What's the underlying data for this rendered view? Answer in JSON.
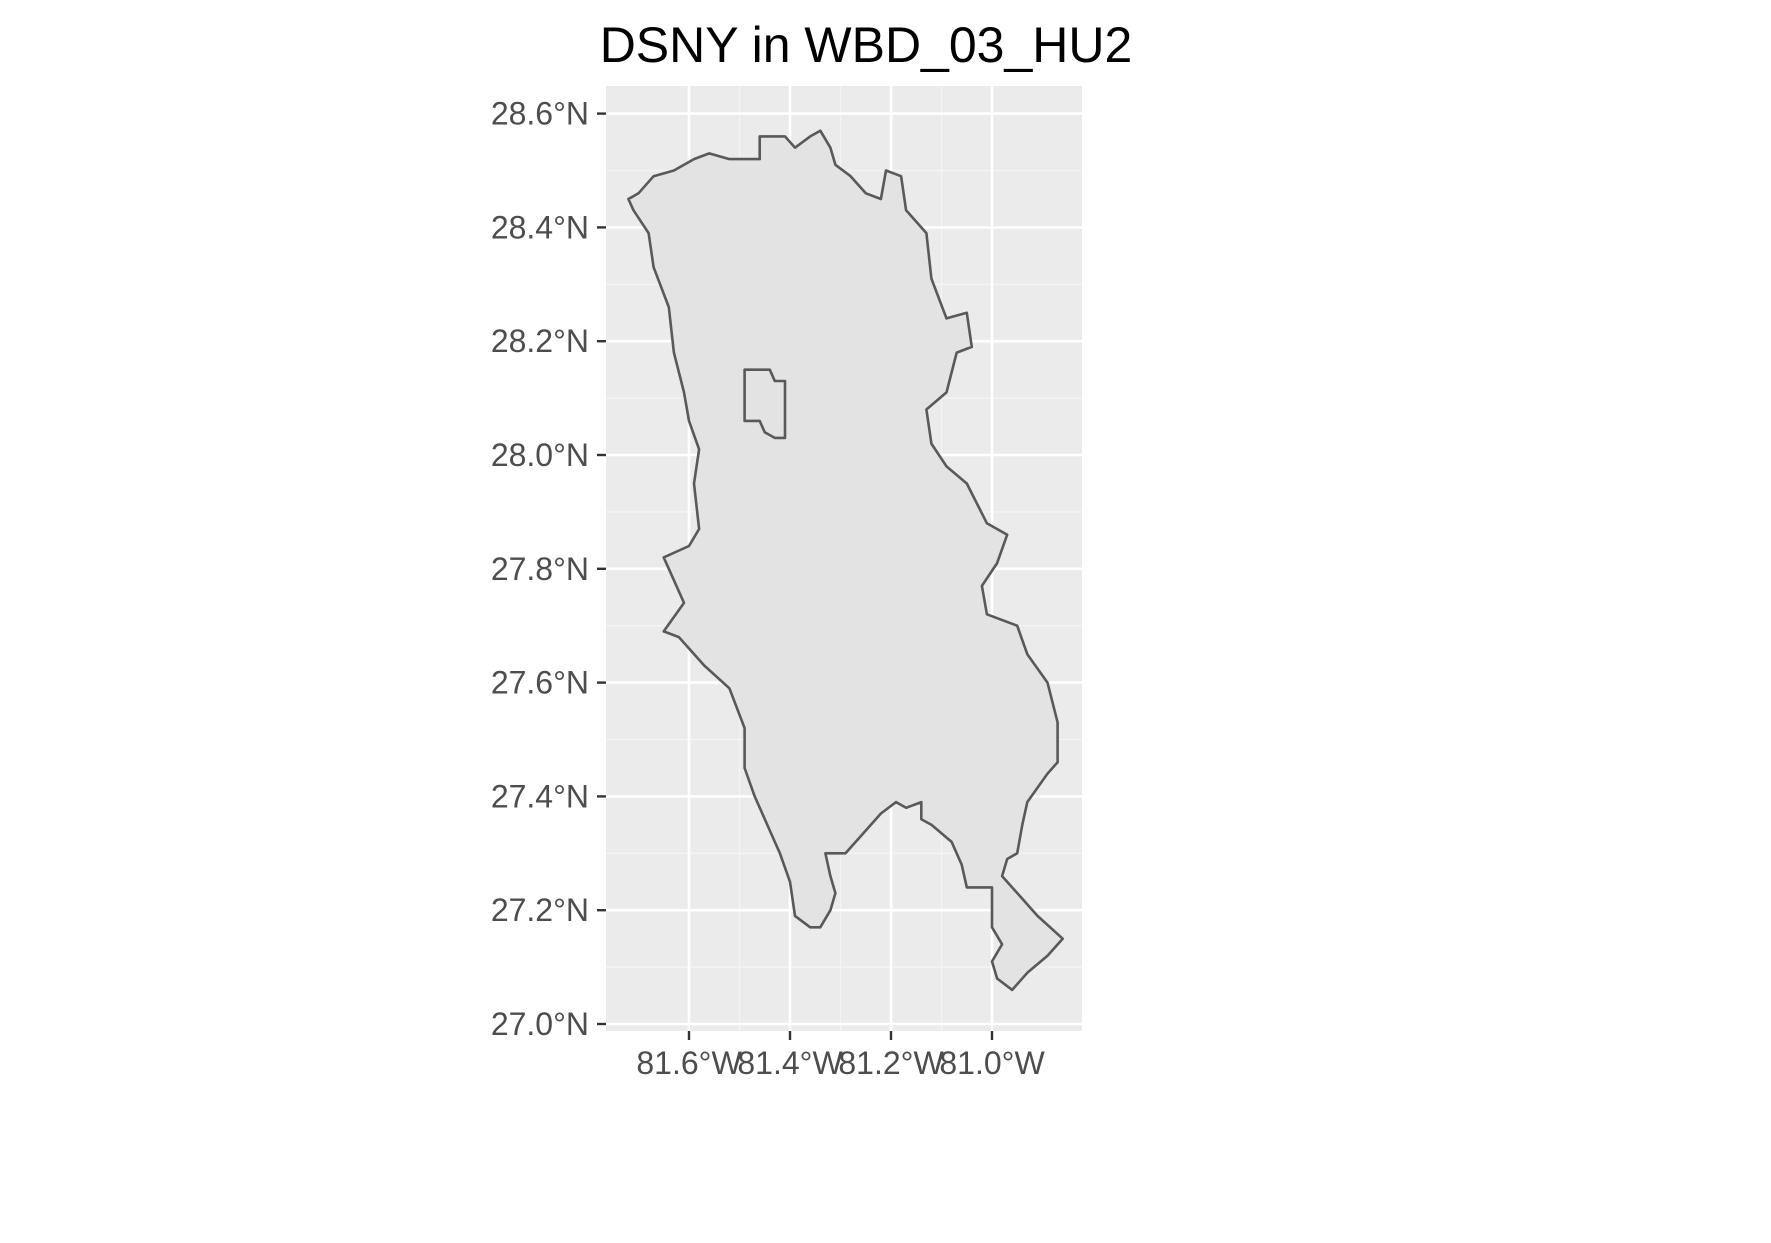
{
  "title": "DSNY in WBD_03_HU2",
  "colors": {
    "panel_background": "#ebebeb",
    "gridline": "#ffffff",
    "region_fill": "#e3e3e3",
    "region_outline": "#595959",
    "tick_label": "#4d4d4d",
    "title": "#000000"
  },
  "chart_data": {
    "type": "map",
    "title": "DSNY in WBD_03_HU2",
    "xlabel": "",
    "ylabel": "",
    "grid": true,
    "x_axis": {
      "unit": "degrees longitude",
      "lim": [
        -81.76,
        -80.82
      ],
      "ticks": [
        -81.6,
        -81.4,
        -81.2,
        -81.0
      ],
      "tick_labels": [
        "81.6°W",
        "81.4°W",
        "81.2°W",
        "81.0°W"
      ]
    },
    "y_axis": {
      "unit": "degrees latitude",
      "lim": [
        27.0,
        28.65
      ],
      "ticks": [
        27.0,
        27.2,
        27.4,
        27.6,
        27.8,
        28.0,
        28.2,
        28.4,
        28.6
      ],
      "tick_labels": [
        "27.0°N",
        "27.2°N",
        "27.4°N",
        "27.6°N",
        "27.8°N",
        "28.0°N",
        "28.2°N",
        "28.4°N",
        "28.6°N"
      ]
    },
    "region": {
      "name": "DSNY",
      "outline": [
        [
          -81.72,
          28.45
        ],
        [
          -81.7,
          28.46
        ],
        [
          -81.67,
          28.49
        ],
        [
          -81.63,
          28.5
        ],
        [
          -81.59,
          28.52
        ],
        [
          -81.56,
          28.53
        ],
        [
          -81.52,
          28.52
        ],
        [
          -81.46,
          28.52
        ],
        [
          -81.46,
          28.56
        ],
        [
          -81.41,
          28.56
        ],
        [
          -81.39,
          28.54
        ],
        [
          -81.36,
          28.56
        ],
        [
          -81.34,
          28.57
        ],
        [
          -81.32,
          28.54
        ],
        [
          -81.31,
          28.51
        ],
        [
          -81.28,
          28.49
        ],
        [
          -81.25,
          28.46
        ],
        [
          -81.22,
          28.45
        ],
        [
          -81.21,
          28.5
        ],
        [
          -81.18,
          28.49
        ],
        [
          -81.17,
          28.43
        ],
        [
          -81.13,
          28.39
        ],
        [
          -81.12,
          28.31
        ],
        [
          -81.09,
          28.24
        ],
        [
          -81.05,
          28.25
        ],
        [
          -81.04,
          28.19
        ],
        [
          -81.07,
          28.18
        ],
        [
          -81.09,
          28.11
        ],
        [
          -81.13,
          28.08
        ],
        [
          -81.12,
          28.02
        ],
        [
          -81.09,
          27.98
        ],
        [
          -81.05,
          27.95
        ],
        [
          -81.01,
          27.88
        ],
        [
          -80.97,
          27.86
        ],
        [
          -80.99,
          27.81
        ],
        [
          -81.02,
          27.77
        ],
        [
          -81.01,
          27.72
        ],
        [
          -80.95,
          27.7
        ],
        [
          -80.93,
          27.65
        ],
        [
          -80.89,
          27.6
        ],
        [
          -80.87,
          27.53
        ],
        [
          -80.87,
          27.46
        ],
        [
          -80.89,
          27.44
        ],
        [
          -80.93,
          27.39
        ],
        [
          -80.94,
          27.35
        ],
        [
          -80.95,
          27.3
        ],
        [
          -80.97,
          27.29
        ],
        [
          -80.98,
          27.26
        ],
        [
          -80.94,
          27.22
        ],
        [
          -80.91,
          27.19
        ],
        [
          -80.86,
          27.15
        ],
        [
          -80.89,
          27.12
        ],
        [
          -80.93,
          27.09
        ],
        [
          -80.96,
          27.06
        ],
        [
          -80.99,
          27.08
        ],
        [
          -81.0,
          27.11
        ],
        [
          -80.98,
          27.14
        ],
        [
          -81.0,
          27.17
        ],
        [
          -81.0,
          27.24
        ],
        [
          -81.05,
          27.24
        ],
        [
          -81.06,
          27.28
        ],
        [
          -81.08,
          27.32
        ],
        [
          -81.12,
          27.35
        ],
        [
          -81.14,
          27.36
        ],
        [
          -81.14,
          27.39
        ],
        [
          -81.17,
          27.38
        ],
        [
          -81.19,
          27.39
        ],
        [
          -81.22,
          27.37
        ],
        [
          -81.26,
          27.33
        ],
        [
          -81.29,
          27.3
        ],
        [
          -81.33,
          27.3
        ],
        [
          -81.32,
          27.26
        ],
        [
          -81.31,
          27.23
        ],
        [
          -81.32,
          27.2
        ],
        [
          -81.34,
          27.17
        ],
        [
          -81.36,
          27.17
        ],
        [
          -81.39,
          27.19
        ],
        [
          -81.4,
          27.25
        ],
        [
          -81.42,
          27.3
        ],
        [
          -81.44,
          27.34
        ],
        [
          -81.47,
          27.4
        ],
        [
          -81.49,
          27.45
        ],
        [
          -81.49,
          27.52
        ],
        [
          -81.52,
          27.59
        ],
        [
          -81.57,
          27.63
        ],
        [
          -81.62,
          27.68
        ],
        [
          -81.65,
          27.69
        ],
        [
          -81.61,
          27.74
        ],
        [
          -81.64,
          27.8
        ],
        [
          -81.65,
          27.82
        ],
        [
          -81.6,
          27.84
        ],
        [
          -81.58,
          27.87
        ],
        [
          -81.59,
          27.95
        ],
        [
          -81.58,
          28.01
        ],
        [
          -81.6,
          28.06
        ],
        [
          -81.61,
          28.11
        ],
        [
          -81.63,
          28.18
        ],
        [
          -81.64,
          28.26
        ],
        [
          -81.67,
          28.33
        ],
        [
          -81.68,
          28.39
        ],
        [
          -81.71,
          28.43
        ],
        [
          -81.72,
          28.45
        ]
      ],
      "excluded_area": [
        [
          -81.49,
          28.15
        ],
        [
          -81.44,
          28.15
        ],
        [
          -81.43,
          28.13
        ],
        [
          -81.41,
          28.13
        ],
        [
          -81.41,
          28.03
        ],
        [
          -81.43,
          28.03
        ],
        [
          -81.45,
          28.04
        ],
        [
          -81.46,
          28.06
        ],
        [
          -81.49,
          28.06
        ],
        [
          -81.49,
          28.15
        ]
      ]
    }
  }
}
